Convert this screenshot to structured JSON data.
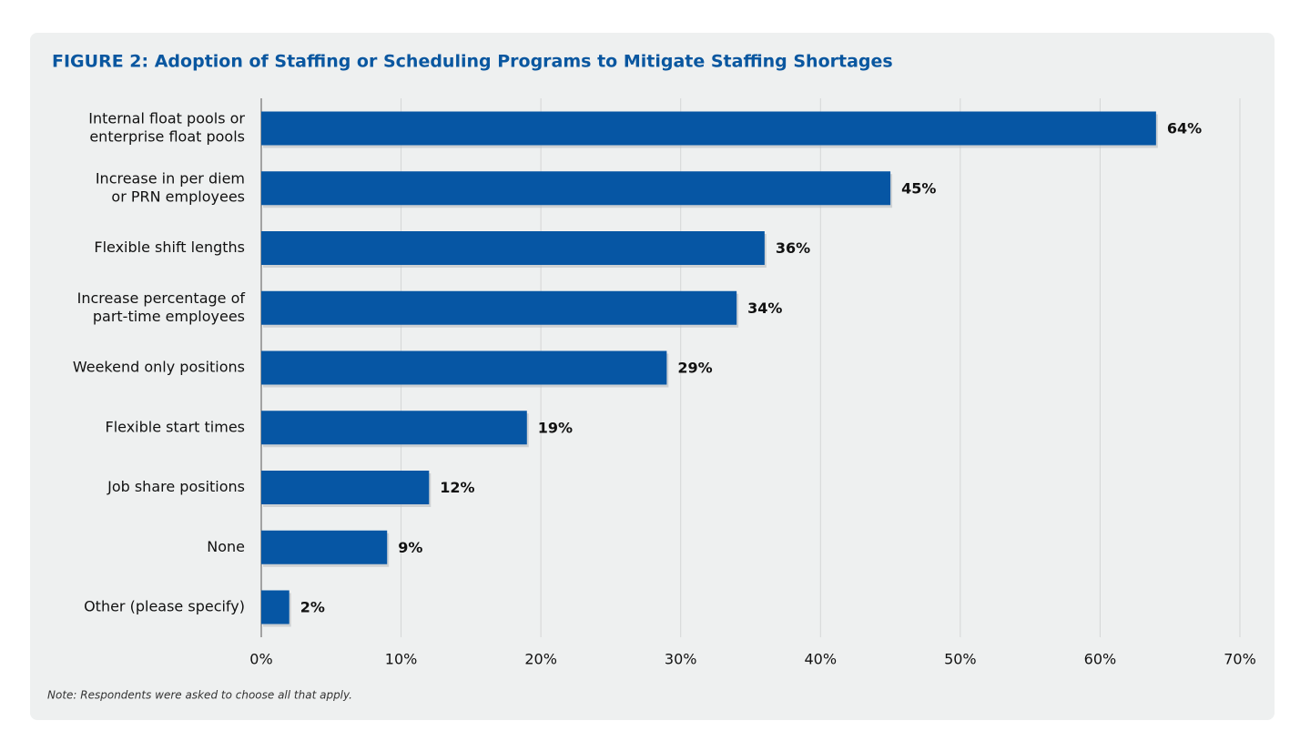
{
  "chart_data": {
    "type": "bar",
    "orientation": "horizontal",
    "title": "FIGURE 2: Adoption of Staffing or Scheduling Programs to Mitigate Staffing Shortages",
    "note": "Note: Respondents were asked to choose all that apply.",
    "categories": [
      [
        "Internal float pools or",
        "enterprise float pools"
      ],
      [
        "Increase in per diem",
        "or PRN employees"
      ],
      [
        "Flexible shift lengths"
      ],
      [
        "Increase percentage of",
        "part-time employees"
      ],
      [
        "Weekend only positions"
      ],
      [
        "Flexible start times"
      ],
      [
        "Job share positions"
      ],
      [
        "None"
      ],
      [
        "Other (please specify)"
      ]
    ],
    "values": [
      64,
      45,
      36,
      34,
      29,
      19,
      12,
      9,
      2
    ],
    "value_labels": [
      "64%",
      "45%",
      "36%",
      "34%",
      "29%",
      "19%",
      "12%",
      "9%",
      "2%"
    ],
    "color": "#0656a4",
    "xlim": [
      0,
      70
    ],
    "xticks": [
      {
        "value": 0,
        "label": "0%"
      },
      {
        "value": 10,
        "label": "10%"
      },
      {
        "value": 20,
        "label": "20%"
      },
      {
        "value": 30,
        "label": "30%"
      },
      {
        "value": 40,
        "label": "40%"
      },
      {
        "value": 50,
        "label": "50%"
      },
      {
        "value": 60,
        "label": "60%"
      },
      {
        "value": 70,
        "label": "70%"
      }
    ],
    "grid": true
  }
}
